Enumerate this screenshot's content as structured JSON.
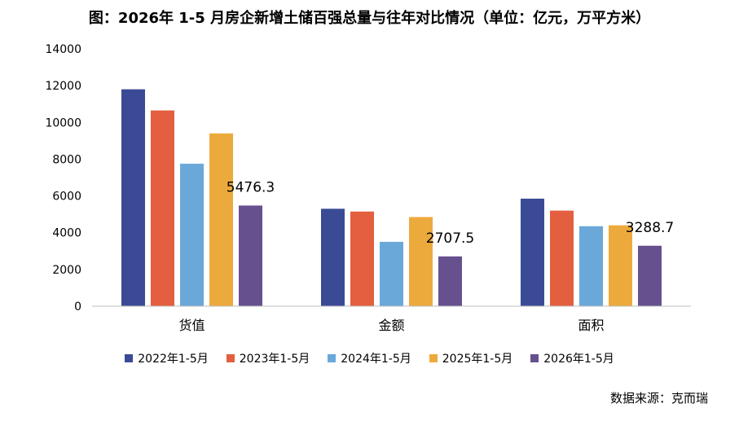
{
  "title": "图：2026年 1-5 月房企新增土储百强总量与往年对比情况（单位：亿元，万平方米）",
  "source": "数据来源：克而瑞",
  "chart_data": {
    "type": "bar",
    "categories": [
      "货值",
      "金额",
      "面积"
    ],
    "ylim": [
      0,
      14000
    ],
    "yticks": [
      "0",
      "2000",
      "4000",
      "6000",
      "8000",
      "10000",
      "12000",
      "14000"
    ],
    "grid": false,
    "legend_position": "bottom",
    "series": [
      {
        "name": "2022年1-5月",
        "color": "#3A4A95",
        "values": [
          11800,
          5300,
          5850
        ]
      },
      {
        "name": "2023年1-5月",
        "color": "#E35F3F",
        "values": [
          10650,
          5150,
          5200
        ]
      },
      {
        "name": "2024年1-5月",
        "color": "#6AA8DA",
        "values": [
          7750,
          3500,
          4350
        ]
      },
      {
        "name": "2025年1-5月",
        "color": "#EDAA3C",
        "values": [
          9400,
          4850,
          4400
        ]
      },
      {
        "name": "2026年1-5月",
        "color": "#66508E",
        "values": [
          5476.3,
          2707.5,
          3288.7
        ]
      }
    ],
    "data_labels": [
      {
        "series": 4,
        "category": 0,
        "text": "5476.3"
      },
      {
        "series": 4,
        "category": 1,
        "text": "2707.5"
      },
      {
        "series": 4,
        "category": 2,
        "text": "3288.7"
      }
    ]
  }
}
